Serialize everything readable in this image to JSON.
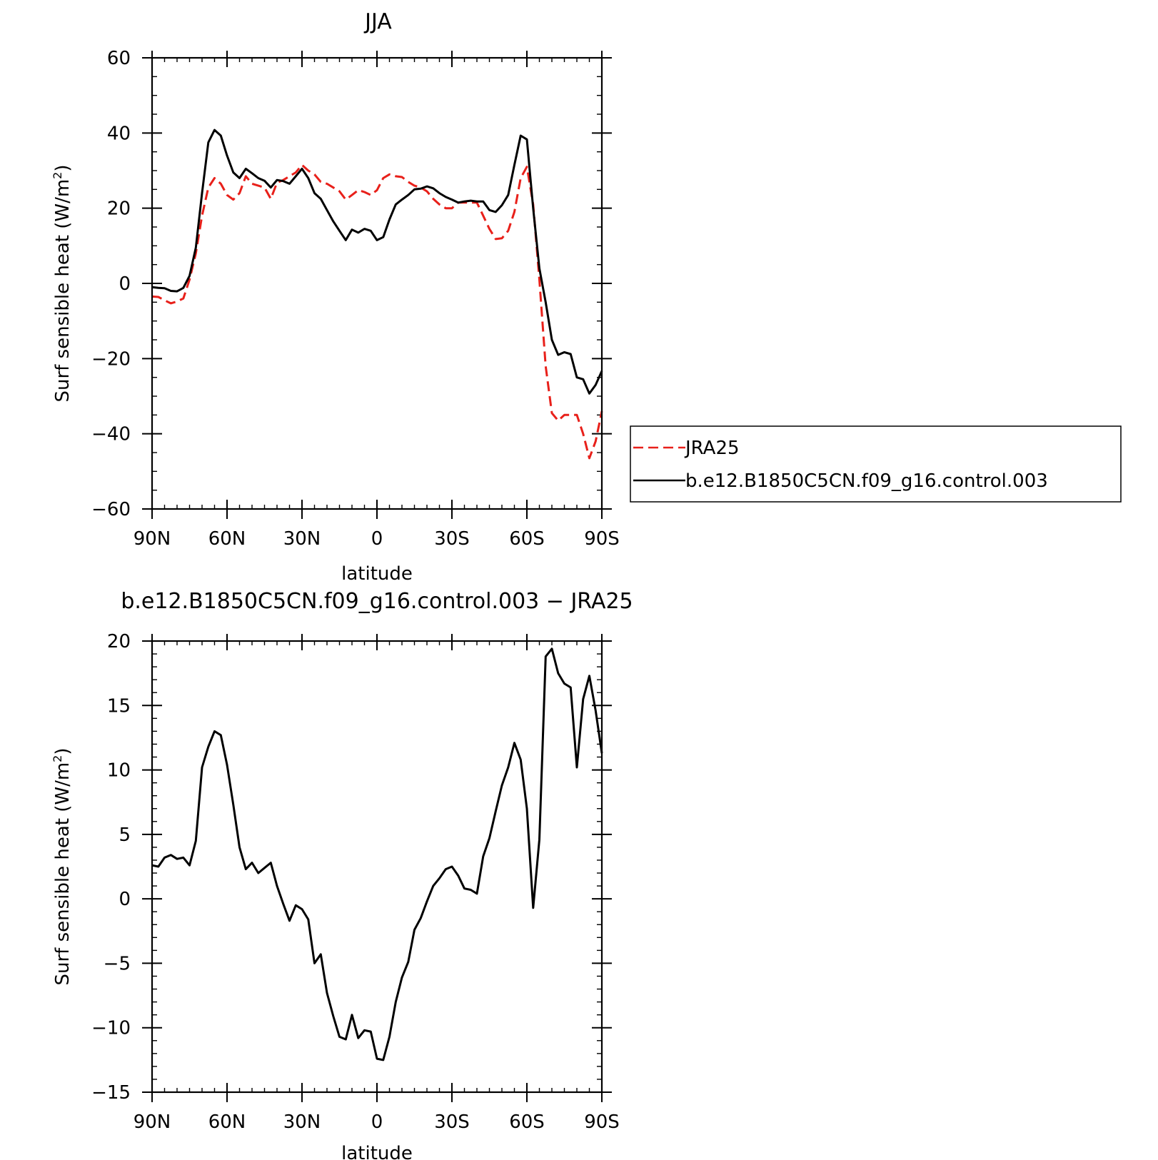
{
  "chart_data": [
    {
      "type": "line",
      "title": "JJA",
      "xlabel": "latitude",
      "ylabel": "Surf sensible heat (W/m²)",
      "ylabel_main": "Surf sensible heat (W/m",
      "ylabel_sup": "2",
      "ylabel_tail": ")",
      "xlim": [
        -90,
        90
      ],
      "ylim": [
        -60,
        60
      ],
      "x_direction": "positive = north, plotted left; increasing southward",
      "xticks": [
        {
          "value": 90,
          "label": "90N"
        },
        {
          "value": 60,
          "label": "60N"
        },
        {
          "value": 30,
          "label": "30N"
        },
        {
          "value": 0,
          "label": "0"
        },
        {
          "value": -30,
          "label": "30S"
        },
        {
          "value": -60,
          "label": "60S"
        },
        {
          "value": -90,
          "label": "90S"
        }
      ],
      "yticks": [
        {
          "value": 60,
          "label": "60"
        },
        {
          "value": 40,
          "label": "40"
        },
        {
          "value": 20,
          "label": "20"
        },
        {
          "value": 0,
          "label": "0"
        },
        {
          "value": -20,
          "label": "−20"
        },
        {
          "value": -40,
          "label": "−40"
        },
        {
          "value": -60,
          "label": "−60"
        }
      ],
      "legend_position": "right, outside plot",
      "series": [
        {
          "name": "JRA25",
          "color": "#e8201a",
          "dash": "dashed",
          "x": [
            90,
            87.5,
            85,
            82.5,
            80,
            77.5,
            75,
            72.5,
            70,
            67.5,
            65,
            62.5,
            60,
            57.5,
            55,
            52.5,
            50,
            47.5,
            45,
            42.5,
            40,
            37.5,
            35,
            32.5,
            30,
            27.5,
            25,
            22.5,
            20,
            17.5,
            15,
            12.5,
            10,
            7.5,
            5,
            2.5,
            0,
            -2.5,
            -5,
            -7.5,
            -10,
            -12.5,
            -15,
            -17.5,
            -20,
            -22.5,
            -25,
            -27.5,
            -30,
            -32.5,
            -35,
            -37.5,
            -40,
            -42.5,
            -45,
            -47.5,
            -50,
            -52.5,
            -55,
            -57.5,
            -60,
            -62.5,
            -65,
            -67.5,
            -70,
            -72.5,
            -75,
            -77.5,
            -80,
            -82.5,
            -85,
            -87.5,
            -90
          ],
          "values": [
            -3.5,
            -3.6,
            -4.5,
            -5.3,
            -4.8,
            -4.0,
            1.0,
            8.0,
            18.0,
            25.5,
            28.0,
            26.5,
            23.5,
            22.3,
            24.0,
            28.5,
            26.5,
            26.0,
            25.5,
            22.5,
            26.8,
            27.5,
            28.5,
            29.5,
            31.5,
            30.0,
            29.0,
            27.0,
            26.5,
            25.5,
            24.5,
            22.3,
            23.5,
            24.8,
            24.3,
            23.5,
            24.8,
            28.0,
            29.0,
            28.5,
            28.3,
            27.0,
            26.0,
            25.5,
            24.5,
            22.5,
            21.0,
            20.0,
            20.0,
            21.5,
            21.5,
            21.5,
            21.5,
            18.0,
            14.5,
            11.8,
            12.0,
            14.0,
            19.0,
            28.0,
            31.0,
            21.0,
            1.0,
            -22.0,
            -34.5,
            -36.5,
            -35.0,
            -35.0,
            -35.0,
            -40.0,
            -46.5,
            -42.0,
            -34.0
          ]
        },
        {
          "name": "b.e12.B1850C5CN.f09_g16.control.003",
          "color": "#000000",
          "dash": "solid",
          "x": [
            90,
            87.5,
            85,
            82.5,
            80,
            77.5,
            75,
            72.5,
            70,
            67.5,
            65,
            62.5,
            60,
            57.5,
            55,
            52.5,
            50,
            47.5,
            45,
            42.5,
            40,
            37.5,
            35,
            32.5,
            30,
            27.5,
            25,
            22.5,
            20,
            17.5,
            15,
            12.5,
            10,
            7.5,
            5,
            2.5,
            0,
            -2.5,
            -5,
            -7.5,
            -10,
            -12.5,
            -15,
            -17.5,
            -20,
            -22.5,
            -25,
            -27.5,
            -30,
            -32.5,
            -35,
            -37.5,
            -40,
            -42.5,
            -45,
            -47.5,
            -50,
            -52.5,
            -55,
            -57.5,
            -60,
            -62.5,
            -65,
            -67.5,
            -70,
            -72.5,
            -75,
            -77.5,
            -80,
            -82.5,
            -85,
            -87.5,
            -90
          ],
          "values": [
            -1.0,
            -1.2,
            -1.3,
            -2.0,
            -2.1,
            -1.2,
            2.0,
            9.5,
            24.0,
            37.5,
            40.8,
            39.3,
            34.0,
            29.5,
            28.0,
            30.5,
            29.3,
            28.0,
            27.3,
            25.5,
            27.5,
            27.2,
            26.5,
            28.5,
            30.5,
            28.0,
            24.0,
            22.5,
            19.5,
            16.5,
            14.0,
            11.5,
            14.3,
            13.5,
            14.5,
            14.0,
            11.5,
            12.3,
            17.0,
            21.0,
            22.3,
            23.5,
            25.0,
            25.2,
            25.8,
            25.3,
            24.0,
            23.0,
            22.3,
            21.5,
            21.8,
            22.0,
            21.8,
            21.8,
            19.5,
            19.0,
            20.8,
            23.5,
            31.5,
            39.3,
            38.3,
            20.0,
            4.0,
            -5.0,
            -15.0,
            -19.0,
            -18.3,
            -18.8,
            -25.0,
            -25.5,
            -29.3,
            -27.0,
            -23.3
          ]
        }
      ]
    },
    {
      "type": "line",
      "title": "b.e12.B1850C5CN.f09_g16.control.003 − JRA25",
      "xlabel": "latitude",
      "ylabel": "Surf sensible heat (W/m²)",
      "ylabel_main": "Surf sensible heat (W/m",
      "ylabel_sup": "2",
      "ylabel_tail": ")",
      "xlim": [
        -90,
        90
      ],
      "ylim": [
        -15,
        20
      ],
      "xticks": [
        {
          "value": 90,
          "label": "90N"
        },
        {
          "value": 60,
          "label": "60N"
        },
        {
          "value": 30,
          "label": "30N"
        },
        {
          "value": 0,
          "label": "0"
        },
        {
          "value": -30,
          "label": "30S"
        },
        {
          "value": -60,
          "label": "60S"
        },
        {
          "value": -90,
          "label": "90S"
        }
      ],
      "yticks": [
        {
          "value": 20,
          "label": "20"
        },
        {
          "value": 15,
          "label": "15"
        },
        {
          "value": 10,
          "label": "10"
        },
        {
          "value": 5,
          "label": "5"
        },
        {
          "value": 0,
          "label": "0"
        },
        {
          "value": -5,
          "label": "−5"
        },
        {
          "value": -10,
          "label": "−10"
        },
        {
          "value": -15,
          "label": "−15"
        }
      ],
      "series": [
        {
          "color": "#000000",
          "dash": "solid",
          "x": [
            90,
            87.5,
            85,
            82.5,
            80,
            77.5,
            75,
            72.5,
            70,
            67.5,
            65,
            62.5,
            60,
            57.5,
            55,
            52.5,
            50,
            47.5,
            45,
            42.5,
            40,
            37.5,
            35,
            32.5,
            30,
            27.5,
            25,
            22.5,
            20,
            17.5,
            15,
            12.5,
            10,
            7.5,
            5,
            2.5,
            0,
            -2.5,
            -5,
            -7.5,
            -10,
            -12.5,
            -15,
            -17.5,
            -20,
            -22.5,
            -25,
            -27.5,
            -30,
            -32.5,
            -35,
            -37.5,
            -40,
            -42.5,
            -45,
            -47.5,
            -50,
            -52.5,
            -55,
            -57.5,
            -60,
            -62.5,
            -65,
            -67.5,
            -70,
            -72.5,
            -75,
            -77.5,
            -80,
            -82.5,
            -85,
            -87.5,
            -90
          ],
          "values": [
            2.6,
            2.5,
            3.2,
            3.4,
            3.1,
            3.2,
            2.6,
            4.5,
            10.2,
            11.8,
            13.0,
            12.7,
            10.4,
            7.3,
            4.0,
            2.3,
            2.8,
            2.0,
            2.4,
            2.8,
            1.0,
            -0.4,
            -1.7,
            -0.5,
            -0.8,
            -1.6,
            -5.0,
            -4.3,
            -7.3,
            -9.1,
            -10.7,
            -10.9,
            -9.0,
            -10.8,
            -10.2,
            -10.3,
            -12.4,
            -12.5,
            -10.7,
            -8.0,
            -6.1,
            -4.9,
            -2.4,
            -1.5,
            -0.2,
            1.0,
            1.6,
            2.3,
            2.5,
            1.8,
            0.8,
            0.7,
            0.4,
            3.3,
            4.7,
            6.8,
            8.8,
            10.2,
            12.1,
            10.8,
            7.0,
            -0.7,
            4.6,
            18.8,
            19.4,
            17.5,
            16.7,
            16.4,
            10.2,
            15.5,
            17.3,
            14.6,
            11.3
          ]
        }
      ]
    }
  ]
}
